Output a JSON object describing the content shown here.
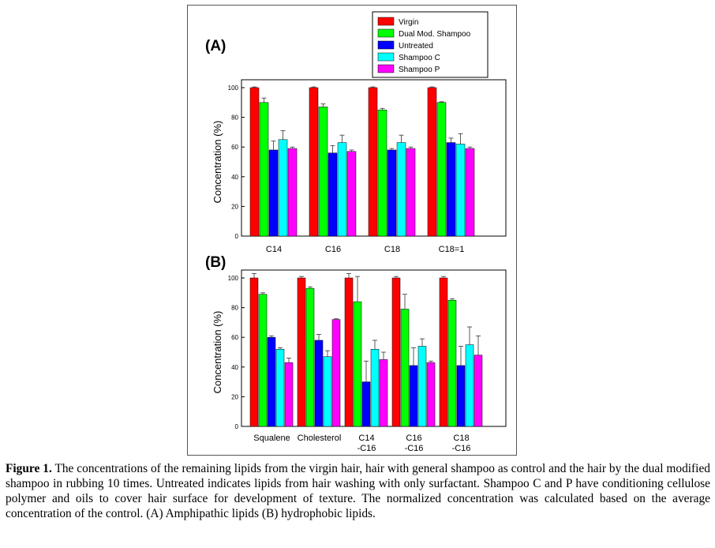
{
  "legend": [
    {
      "name": "Virgin",
      "color": "#ff0000"
    },
    {
      "name": "Dual Mod. Shampoo",
      "color": "#00ff00"
    },
    {
      "name": "Untreated",
      "color": "#0000ff"
    },
    {
      "name": "Shampoo C",
      "color": "#00ffff"
    },
    {
      "name": "Shampoo P",
      "color": "#ff00ff"
    }
  ],
  "chart_data": [
    {
      "type": "bar",
      "panel": "(A)",
      "ylabel": "Concentration (%)",
      "ylim": [
        0,
        100
      ],
      "yticks": [
        "0",
        "20",
        "40",
        "60",
        "80",
        "100"
      ],
      "categories": [
        "C14",
        "C16",
        "C18",
        "C18=1"
      ],
      "series": [
        {
          "name": "Virgin",
          "values": [
            100,
            100,
            100,
            100
          ],
          "errors": [
            0.5,
            0.5,
            0.5,
            0.5
          ]
        },
        {
          "name": "Dual Mod. Shampoo",
          "values": [
            90,
            87,
            85,
            90
          ],
          "errors": [
            3,
            2,
            1,
            0.5
          ]
        },
        {
          "name": "Untreated",
          "values": [
            58,
            56,
            58,
            63
          ],
          "errors": [
            6,
            5,
            1,
            3
          ]
        },
        {
          "name": "Shampoo C",
          "values": [
            65,
            63,
            63,
            62
          ],
          "errors": [
            6,
            5,
            5,
            7
          ]
        },
        {
          "name": "Shampoo P",
          "values": [
            59,
            57,
            59,
            59
          ],
          "errors": [
            1,
            1,
            1,
            1
          ]
        }
      ]
    },
    {
      "type": "bar",
      "panel": "(B)",
      "ylabel": "Concentration (%)",
      "ylim": [
        0,
        100
      ],
      "yticks": [
        "0",
        "20",
        "40",
        "60",
        "80",
        "100"
      ],
      "categories": [
        "Squalene",
        "Cholesterol",
        "C14\n-C16",
        "C16\n-C16",
        "C18\n-C16"
      ],
      "series": [
        {
          "name": "Virgin",
          "values": [
            100,
            100,
            100,
            100,
            100
          ],
          "errors": [
            3,
            1,
            3,
            1,
            1
          ]
        },
        {
          "name": "Dual Mod. Shampoo",
          "values": [
            89,
            93,
            84,
            79,
            85
          ],
          "errors": [
            1,
            1,
            17,
            10,
            1
          ]
        },
        {
          "name": "Untreated",
          "values": [
            60,
            58,
            30,
            41,
            41
          ],
          "errors": [
            1,
            4,
            14,
            12,
            13
          ]
        },
        {
          "name": "Shampoo C",
          "values": [
            52,
            47,
            52,
            54,
            55
          ],
          "errors": [
            1,
            4,
            6,
            5,
            12
          ]
        },
        {
          "name": "Shampoo P",
          "values": [
            43,
            72,
            45,
            43,
            48
          ],
          "errors": [
            3,
            0.5,
            5,
            1,
            13
          ]
        }
      ]
    }
  ],
  "caption": {
    "label": "Figure 1.",
    "text": " The concentrations of the remaining lipids from the virgin hair, hair with general shampoo as control and the hair by the dual modified shampoo in rubbing 10 times. Untreated indicates lipids from hair washing with only surfactant. Shampoo C and P have conditioning cellulose polymer and oils to cover hair surface for development of texture. The normalized concentration was calculated based on the average concentration of the control. (A) Amphipathic lipids (B) hydrophobic lipids."
  }
}
